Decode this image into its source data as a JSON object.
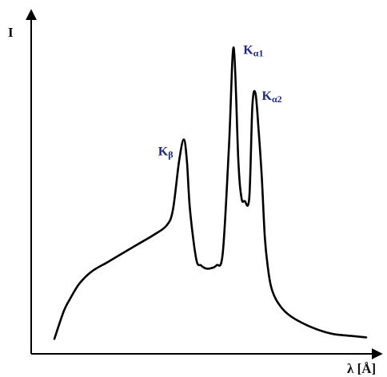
{
  "chart_data": {
    "type": "line",
    "title": "",
    "ylabel": "I",
    "xlabel": "λ [Å]",
    "xlim": [
      0,
      100
    ],
    "ylim": [
      0,
      100
    ],
    "grid": false,
    "colors": {
      "curve": "#000000",
      "axis": "#000000",
      "label_text": "#111111",
      "peak_label": "#1f2a7a"
    },
    "series": [
      {
        "x": [
          0,
          3,
          5,
          8,
          12,
          17,
          22,
          27,
          32,
          36,
          38,
          40,
          41.5,
          42.5,
          43.5,
          45.5,
          47,
          48.5,
          50,
          52,
          54,
          56,
          57.5,
          59,
          60,
          61,
          62.5,
          63.5,
          64.5,
          65.5,
          66.5,
          67.5,
          68.5,
          69.5,
          71,
          73,
          75,
          78,
          82,
          86,
          90,
          95,
          100
        ],
        "y": [
          2,
          11,
          15,
          20,
          24,
          27,
          30,
          33,
          36,
          39,
          44,
          60,
          67,
          60,
          44,
          28,
          26,
          25,
          25,
          26,
          30,
          65,
          97,
          60,
          48,
          47,
          48,
          78,
          82,
          70,
          55,
          35,
          25,
          19,
          15,
          12,
          10,
          8,
          6,
          4.5,
          3.5,
          3,
          2.5
        ]
      }
    ],
    "annotations": [
      {
        "base": "K",
        "sub": "β",
        "x": 42,
        "y": 67
      },
      {
        "base": "K",
        "sub": "α1",
        "x": 57.5,
        "y": 97
      },
      {
        "base": "K",
        "sub": "α2",
        "x": 65,
        "y": 82
      }
    ]
  }
}
